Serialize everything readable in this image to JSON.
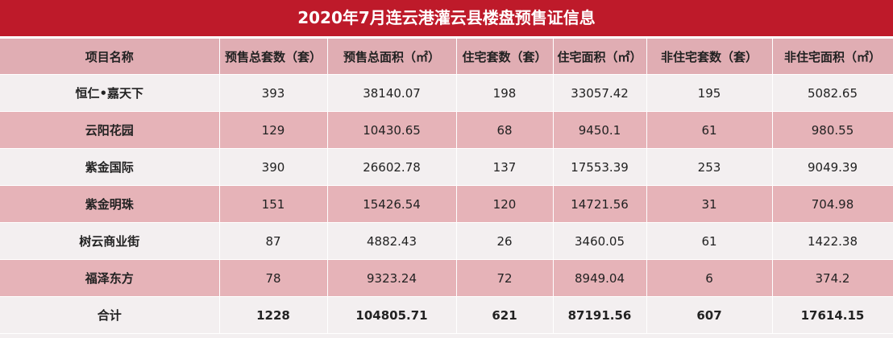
{
  "title": "2020年7月连云港灌云县楼盘预售证信息",
  "colors": {
    "title_bg": "#be1a2a",
    "header_bg": "#e0adb3",
    "row_light": "#f3eff0",
    "row_pink": "#e6b3b8"
  },
  "headers": [
    "项目名称",
    "预售总套数（套）",
    "预售总面积（㎡）",
    "住宅套数（套）",
    "住宅面积（㎡）",
    "非住宅套数（套）",
    "非住宅面积（㎡）"
  ],
  "rows": [
    [
      "恒仁•嘉天下",
      "393",
      "38140.07",
      "198",
      "33057.42",
      "195",
      "5082.65"
    ],
    [
      "云阳花园",
      "129",
      "10430.65",
      "68",
      "9450.1",
      "61",
      "980.55"
    ],
    [
      "紫金国际",
      "390",
      "26602.78",
      "137",
      "17553.39",
      "253",
      "9049.39"
    ],
    [
      "紫金明珠",
      "151",
      "15426.54",
      "120",
      "14721.56",
      "31",
      "704.98"
    ],
    [
      "树云商业街",
      "87",
      "4882.43",
      "26",
      "3460.05",
      "61",
      "1422.38"
    ],
    [
      "福泽东方",
      "78",
      "9323.24",
      "72",
      "8949.04",
      "6",
      "374.2"
    ]
  ],
  "total": [
    "合计",
    "1228",
    "104805.71",
    "621",
    "87191.56",
    "607",
    "17614.15"
  ]
}
